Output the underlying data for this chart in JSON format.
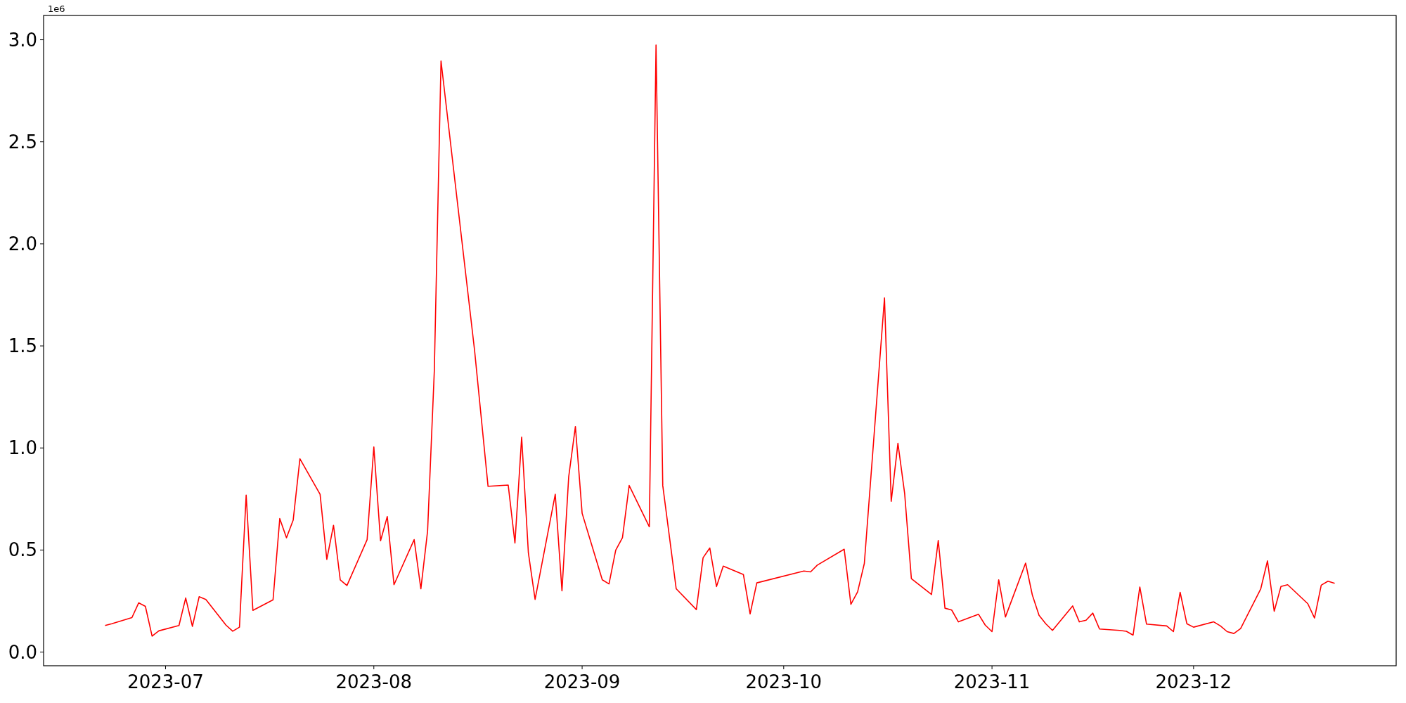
{
  "chart_data": {
    "type": "line",
    "xlim": [
      "2023-06-12T20:24",
      "2023-12-31T03:36"
    ],
    "ylim": [
      -0.067,
      3.119
    ],
    "xticks": [
      {
        "value": "2023-07-01",
        "label": "2023-07"
      },
      {
        "value": "2023-08-01",
        "label": "2023-08"
      },
      {
        "value": "2023-09-01",
        "label": "2023-09"
      },
      {
        "value": "2023-10-01",
        "label": "2023-10"
      },
      {
        "value": "2023-11-01",
        "label": "2023-11"
      },
      {
        "value": "2023-12-01",
        "label": "2023-12"
      }
    ],
    "yticks": [
      {
        "value": 0,
        "label": "0.0"
      },
      0.5,
      {
        "value": 1,
        "label": "1.0"
      },
      1.5,
      {
        "value": 2,
        "label": "2.0"
      },
      2.5,
      {
        "value": 3,
        "label": "3.0"
      }
    ],
    "annotations": [
      "1e6"
    ],
    "grid": false,
    "marker": "none",
    "line_style": "solid",
    "x": [
      "2023-06-22",
      "2023-06-23",
      "2023-06-26",
      "2023-06-27",
      "2023-06-28",
      "2023-06-29",
      "2023-06-30",
      "2023-07-03",
      "2023-07-04",
      "2023-07-05",
      "2023-07-06",
      "2023-07-07",
      "2023-07-10",
      "2023-07-11",
      "2023-07-12",
      "2023-07-13",
      "2023-07-14",
      "2023-07-17",
      "2023-07-18",
      "2023-07-19",
      "2023-07-20",
      "2023-07-21",
      "2023-07-24",
      "2023-07-25",
      "2023-07-26",
      "2023-07-27",
      "2023-07-28",
      "2023-07-31",
      "2023-08-01",
      "2023-08-02",
      "2023-08-03",
      "2023-08-04",
      "2023-08-07",
      "2023-08-08",
      "2023-08-09",
      "2023-08-10",
      "2023-08-11",
      "2023-08-16",
      "2023-08-18",
      "2023-08-21",
      "2023-08-22",
      "2023-08-23",
      "2023-08-24",
      "2023-08-25",
      "2023-08-28",
      "2023-08-29",
      "2023-08-30",
      "2023-08-31",
      "2023-09-01",
      "2023-09-04",
      "2023-09-05",
      "2023-09-06",
      "2023-09-07",
      "2023-09-08",
      "2023-09-11",
      "2023-09-12",
      "2023-09-13",
      "2023-09-15",
      "2023-09-18",
      "2023-09-19",
      "2023-09-20",
      "2023-09-21",
      "2023-09-22",
      "2023-09-25",
      "2023-09-26",
      "2023-09-27",
      "2023-10-04",
      "2023-10-05",
      "2023-10-06",
      "2023-10-10",
      "2023-10-11",
      "2023-10-12",
      "2023-10-13",
      "2023-10-16",
      "2023-10-17",
      "2023-10-18",
      "2023-10-19",
      "2023-10-20",
      "2023-10-23",
      "2023-10-24",
      "2023-10-25",
      "2023-10-26",
      "2023-10-27",
      "2023-10-30",
      "2023-10-31",
      "2023-11-01",
      "2023-11-02",
      "2023-11-03",
      "2023-11-06",
      "2023-11-07",
      "2023-11-08",
      "2023-11-09",
      "2023-11-10",
      "2023-11-13",
      "2023-11-14",
      "2023-11-15",
      "2023-11-16",
      "2023-11-17",
      "2023-11-20",
      "2023-11-21",
      "2023-11-22",
      "2023-11-23",
      "2023-11-24",
      "2023-11-27",
      "2023-11-28",
      "2023-11-29",
      "2023-11-30",
      "2023-12-01",
      "2023-12-04",
      "2023-12-05",
      "2023-12-06",
      "2023-12-07",
      "2023-12-08",
      "2023-12-11",
      "2023-12-12",
      "2023-12-13",
      "2023-12-14",
      "2023-12-15",
      "2023-12-18",
      "2023-12-19",
      "2023-12-20",
      "2023-12-21",
      "2023-12-22"
    ],
    "series": [
      {
        "color": "#ff0000",
        "values": [
          0.13,
          0.139,
          0.169,
          0.241,
          0.224,
          0.078,
          0.104,
          0.13,
          0.265,
          0.126,
          0.271,
          0.258,
          0.132,
          0.102,
          0.122,
          0.769,
          0.204,
          0.256,
          0.654,
          0.56,
          0.647,
          0.947,
          0.773,
          0.454,
          0.621,
          0.354,
          0.326,
          0.551,
          1.005,
          0.545,
          0.664,
          0.33,
          0.551,
          0.31,
          0.593,
          1.376,
          2.896,
          1.476,
          0.812,
          0.818,
          0.534,
          1.053,
          0.486,
          0.258,
          0.773,
          0.3,
          0.858,
          1.105,
          0.68,
          0.354,
          0.334,
          0.499,
          0.56,
          0.816,
          0.614,
          2.974,
          0.816,
          0.31,
          0.208,
          0.462,
          0.51,
          0.321,
          0.421,
          0.38,
          0.187,
          0.339,
          0.397,
          0.393,
          0.426,
          0.504,
          0.234,
          0.295,
          0.434,
          1.735,
          0.738,
          1.023,
          0.777,
          0.36,
          0.282,
          0.547,
          0.215,
          0.206,
          0.148,
          0.185,
          0.132,
          0.1,
          0.354,
          0.172,
          0.436,
          0.28,
          0.18,
          0.139,
          0.106,
          0.226,
          0.148,
          0.156,
          0.191,
          0.113,
          0.106,
          0.102,
          0.083,
          0.319,
          0.137,
          0.128,
          0.1,
          0.293,
          0.139,
          0.122,
          0.148,
          0.128,
          0.1,
          0.091,
          0.115,
          0.31,
          0.447,
          0.2,
          0.321,
          0.33,
          0.237,
          0.167,
          0.328,
          0.347,
          0.337
        ]
      }
    ]
  }
}
